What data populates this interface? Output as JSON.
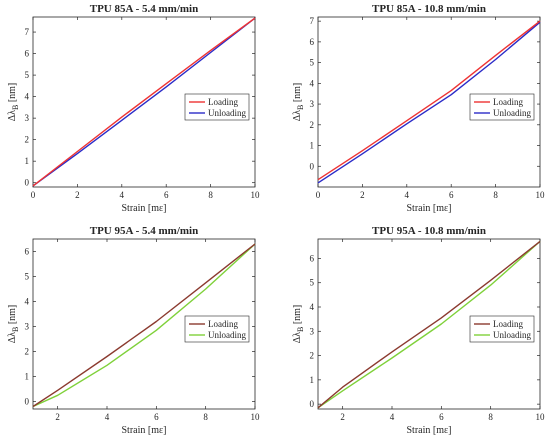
{
  "chart_data": [
    {
      "type": "line",
      "title": "TPU 85A - 5.4 mm/min",
      "xlabel": "Strain [mε]",
      "ylabel": "Δλ",
      "ylabel_subscript": "B",
      "ylabel_unit": " [nm]",
      "xlim": [
        0,
        10
      ],
      "ylim": [
        -0.2,
        7.7
      ],
      "xticks": [
        "0",
        "2",
        "4",
        "6",
        "8",
        "10"
      ],
      "yticks": [
        "0",
        "1",
        "2",
        "3",
        "4",
        "5",
        "6",
        "7"
      ],
      "xtick_values": [
        0,
        2,
        4,
        6,
        8,
        10
      ],
      "ytick_values": [
        0,
        1,
        2,
        3,
        4,
        5,
        6,
        7
      ],
      "legend_position": "right-middle",
      "series": [
        {
          "name": "Loading",
          "color": "#ee3333",
          "x": [
            0,
            2,
            4,
            6,
            8,
            10
          ],
          "y": [
            -0.15,
            1.45,
            3.05,
            4.6,
            6.15,
            7.65
          ]
        },
        {
          "name": "Unloading",
          "color": "#2b2bc8",
          "x": [
            0,
            2,
            4,
            6,
            8,
            10
          ],
          "y": [
            -0.15,
            1.35,
            2.9,
            4.45,
            6.05,
            7.65
          ]
        }
      ]
    },
    {
      "type": "line",
      "title": "TPU 85A - 10.8 mm/min",
      "xlabel": "Strain [mε]",
      "ylabel": "Δλ",
      "ylabel_subscript": "B",
      "ylabel_unit": " [nm]",
      "xlim": [
        0,
        10
      ],
      "ylim": [
        -1,
        7.2
      ],
      "xticks": [
        "0",
        "2",
        "4",
        "6",
        "8",
        "10"
      ],
      "yticks": [
        "0",
        "1",
        "2",
        "3",
        "4",
        "5",
        "6",
        "7"
      ],
      "xtick_values": [
        0,
        2,
        4,
        6,
        8,
        10
      ],
      "ytick_values": [
        0,
        1,
        2,
        3,
        4,
        5,
        6,
        7
      ],
      "legend_position": "right-middle",
      "series": [
        {
          "name": "Loading",
          "color": "#ee3333",
          "x": [
            0,
            2,
            4,
            6,
            8,
            10
          ],
          "y": [
            -0.65,
            0.75,
            2.2,
            3.65,
            5.35,
            7.0
          ]
        },
        {
          "name": "Unloading",
          "color": "#2b2bc8",
          "x": [
            0,
            2,
            4,
            6,
            8,
            10
          ],
          "y": [
            -0.8,
            0.6,
            2.05,
            3.45,
            5.15,
            6.95
          ]
        }
      ]
    },
    {
      "type": "line",
      "title": "TPU 95A - 5.4 mm/min",
      "xlabel": "Strain [mε]",
      "ylabel": "Δλ",
      "ylabel_subscript": "B",
      "ylabel_unit": " [nm]",
      "xlim": [
        1,
        10
      ],
      "ylim": [
        -0.3,
        6.5
      ],
      "xticks": [
        "2",
        "4",
        "6",
        "8",
        "10"
      ],
      "yticks": [
        "0",
        "1",
        "2",
        "3",
        "4",
        "5",
        "6"
      ],
      "xtick_values": [
        2,
        4,
        6,
        8,
        10
      ],
      "ytick_values": [
        0,
        1,
        2,
        3,
        4,
        5,
        6
      ],
      "legend_position": "right-middle",
      "series": [
        {
          "name": "Loading",
          "color": "#8b3a2f",
          "x": [
            1,
            2,
            4,
            6,
            8,
            10
          ],
          "y": [
            -0.2,
            0.45,
            1.8,
            3.2,
            4.75,
            6.3
          ]
        },
        {
          "name": "Unloading",
          "color": "#7fd13a",
          "x": [
            1,
            2,
            4,
            6,
            8,
            10
          ],
          "y": [
            -0.2,
            0.25,
            1.45,
            2.85,
            4.5,
            6.3
          ]
        }
      ]
    },
    {
      "type": "line",
      "title": "TPU 95A - 10.8 mm/min",
      "xlabel": "Strain [mε]",
      "ylabel": "Δλ",
      "ylabel_subscript": "B",
      "ylabel_unit": " [nm]",
      "xlim": [
        1,
        10
      ],
      "ylim": [
        -0.2,
        6.8
      ],
      "xticks": [
        "2",
        "4",
        "6",
        "8",
        "10"
      ],
      "yticks": [
        "0",
        "1",
        "2",
        "3",
        "4",
        "5",
        "6"
      ],
      "xtick_values": [
        2,
        4,
        6,
        8,
        10
      ],
      "ytick_values": [
        0,
        1,
        2,
        3,
        4,
        5,
        6
      ],
      "legend_position": "right-middle",
      "series": [
        {
          "name": "Loading",
          "color": "#8b3a2f",
          "x": [
            1,
            2,
            4,
            6,
            8,
            10
          ],
          "y": [
            -0.15,
            0.7,
            2.15,
            3.55,
            5.1,
            6.7
          ]
        },
        {
          "name": "Unloading",
          "color": "#7fd13a",
          "x": [
            1,
            2,
            4,
            6,
            8,
            10
          ],
          "y": [
            -0.15,
            0.55,
            1.9,
            3.3,
            4.9,
            6.7
          ]
        }
      ]
    }
  ]
}
